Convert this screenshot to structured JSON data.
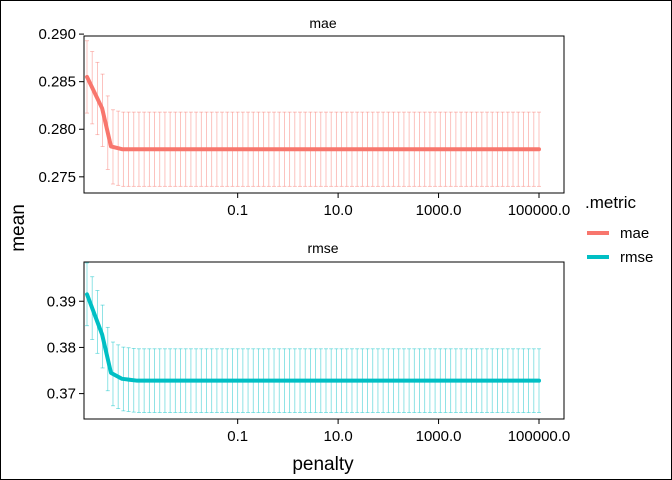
{
  "chart_data": {
    "type": "line",
    "xlabel": "penalty",
    "ylabel": "mean",
    "x_scale": "log10",
    "xlim": [
      0.0001,
      200000
    ],
    "xticks": [
      0.1,
      10.0,
      1000.0,
      100000.0
    ],
    "xtick_labels": [
      "0.1",
      "10.0",
      "1000.0",
      "100000.0"
    ],
    "grid": false,
    "legend": {
      "title": ".metric",
      "position": "right",
      "entries": [
        {
          "label": "mae",
          "color": "#F8766D"
        },
        {
          "label": "rmse",
          "color": "#00BFC4"
        }
      ]
    },
    "panels": [
      {
        "strip_label": "mae",
        "metric": "mae",
        "color": "#F8766D",
        "ylim": [
          0.2733,
          0.2898
        ],
        "yticks": [
          0.275,
          0.28,
          0.285,
          0.29
        ],
        "ytick_labels": [
          "0.275",
          "0.280",
          "0.285",
          "0.290"
        ],
        "x": [
          0.0001,
          0.0002,
          0.0003,
          0.0005,
          0.001,
          0.01,
          0.1,
          1,
          10,
          100,
          1000,
          10000,
          100000
        ],
        "mean": [
          0.2855,
          0.2822,
          0.2782,
          0.2779,
          0.2779,
          0.2779,
          0.2779,
          0.2779,
          0.2779,
          0.2779,
          0.2779,
          0.2779,
          0.2779
        ],
        "std_err": [
          0.0038,
          0.0038,
          0.0039,
          0.0039,
          0.0039,
          0.0039,
          0.0039,
          0.0039,
          0.0039,
          0.0039,
          0.0039,
          0.0039,
          0.0039
        ]
      },
      {
        "strip_label": "rmse",
        "metric": "rmse",
        "color": "#00BFC4",
        "ylim": [
          0.3645,
          0.3985
        ],
        "yticks": [
          0.37,
          0.38,
          0.39
        ],
        "ytick_labels": [
          "0.37",
          "0.38",
          "0.39"
        ],
        "x": [
          0.0001,
          0.0002,
          0.0003,
          0.0005,
          0.001,
          0.01,
          0.1,
          1,
          10,
          100,
          1000,
          10000,
          100000
        ],
        "mean": [
          0.3915,
          0.3828,
          0.3745,
          0.3732,
          0.3728,
          0.3728,
          0.3728,
          0.3728,
          0.3728,
          0.3728,
          0.3728,
          0.3728,
          0.3728
        ],
        "std_err": [
          0.0068,
          0.0068,
          0.0069,
          0.0069,
          0.0069,
          0.0069,
          0.0069,
          0.0069,
          0.0069,
          0.0069,
          0.0069,
          0.0069,
          0.0069
        ]
      }
    ]
  }
}
